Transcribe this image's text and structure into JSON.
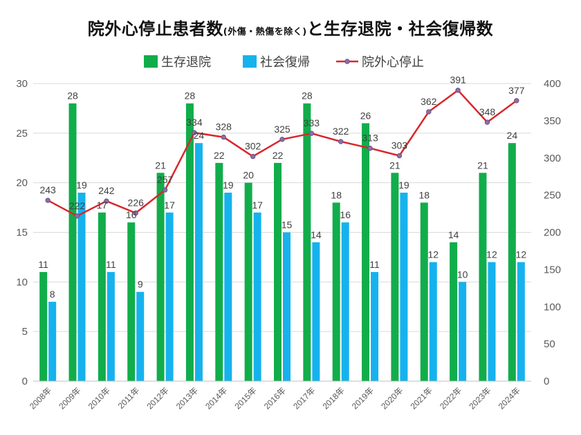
{
  "chart_data": {
    "type": "bar",
    "title_main_1": "院外心停止患者数",
    "title_sub": "(外傷・熱傷を除く)",
    "title_main_2": "と生存退院・社会復帰数",
    "categories": [
      "2008年",
      "2009年",
      "2010年",
      "2011年",
      "2012年",
      "2013年",
      "2014年",
      "2015年",
      "2016年",
      "2017年",
      "2018年",
      "2019年",
      "2020年",
      "2021年",
      "2022年",
      "2023年",
      "2024年"
    ],
    "series": [
      {
        "name": "生存退院",
        "type": "bar",
        "axis": "left",
        "color": "#11AD4B",
        "values": [
          11,
          28,
          17,
          16,
          21,
          28,
          22,
          20,
          22,
          28,
          18,
          26,
          21,
          18,
          14,
          21,
          24
        ]
      },
      {
        "name": "社会復帰",
        "type": "bar",
        "axis": "left",
        "color": "#16B2EE",
        "values": [
          8,
          19,
          11,
          9,
          17,
          24,
          19,
          17,
          15,
          14,
          16,
          11,
          19,
          12,
          10,
          12,
          12
        ]
      },
      {
        "name": "院外心停止",
        "type": "line",
        "axis": "right",
        "color": "#D9262B",
        "values": [
          243,
          222,
          242,
          226,
          257,
          334,
          328,
          302,
          325,
          333,
          322,
          313,
          303,
          362,
          391,
          348,
          377
        ]
      }
    ],
    "ylim_left": [
      0,
      30
    ],
    "yticks_left": [
      0,
      5,
      10,
      15,
      20,
      25,
      30
    ],
    "ylim_right": [
      0,
      400
    ],
    "yticks_right": [
      0,
      50,
      100,
      150,
      200,
      250,
      300,
      350,
      400
    ],
    "legend_position": "top-center",
    "grid": true
  }
}
